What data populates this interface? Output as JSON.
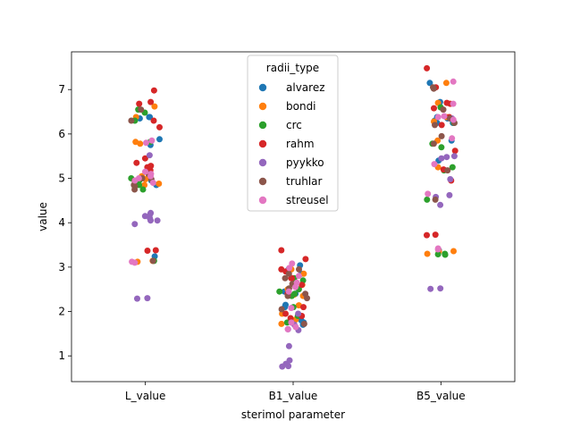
{
  "chart_data": {
    "type": "scatter",
    "title": "",
    "xlabel": "sterimol parameter",
    "ylabel": "value",
    "categories": [
      "L_value",
      "B1_value",
      "B5_value"
    ],
    "ylim": [
      0.42,
      7.85
    ],
    "yticks": [
      1,
      2,
      3,
      4,
      5,
      6,
      7
    ],
    "legend": {
      "title": "radii_type",
      "placement": "upper center"
    },
    "series": [
      {
        "name": "alvarez",
        "color": "#1f77b4",
        "values": [
          [
            6.38,
            6.35,
            6.38,
            5.88,
            5.75,
            5.0,
            4.9,
            4.85,
            4.95,
            3.24
          ],
          [
            3.04,
            2.95,
            2.85,
            2.45,
            2.4,
            2.15,
            2.1,
            1.8,
            1.75,
            1.7
          ],
          [
            7.15,
            6.72,
            6.35,
            6.25,
            6.3,
            6.38,
            6.25,
            5.85,
            5.4,
            3.38
          ]
        ]
      },
      {
        "name": "bondi",
        "color": "#ff7f0e",
        "values": [
          [
            6.62,
            6.38,
            5.82,
            5.78,
            5.05,
            4.98,
            4.88,
            4.85,
            3.14,
            3.12
          ],
          [
            2.95,
            2.85,
            2.6,
            2.5,
            2.38,
            2.35,
            2.14,
            1.95,
            1.82,
            1.72
          ],
          [
            7.15,
            6.7,
            6.38,
            6.28,
            5.85,
            5.25,
            3.38,
            3.36,
            3.35,
            3.3
          ]
        ]
      },
      {
        "name": "crc",
        "color": "#2ca02c",
        "values": [
          [
            6.55,
            6.3,
            5.82,
            5.0,
            4.95,
            4.85,
            4.75,
            4.9,
            3.14,
            6.48
          ],
          [
            2.75,
            2.7,
            2.65,
            2.5,
            2.45,
            2.4,
            2.35,
            2.1,
            1.9,
            1.75
          ],
          [
            6.6,
            6.25,
            5.78,
            5.7,
            5.25,
            5.18,
            4.52,
            3.3,
            3.28,
            3.29
          ]
        ]
      },
      {
        "name": "rahm",
        "color": "#d62728",
        "values": [
          [
            6.98,
            6.72,
            6.68,
            6.3,
            6.15,
            5.45,
            5.35,
            5.25,
            5.18,
            3.38,
            3.37,
            5.28
          ],
          [
            3.38,
            3.18,
            2.95,
            2.9,
            2.75,
            2.6,
            2.4,
            2.1,
            1.95,
            1.9,
            1.85,
            2.75
          ],
          [
            7.48,
            7.05,
            6.7,
            6.68,
            6.38,
            5.62,
            5.2,
            4.95,
            3.73,
            3.72,
            6.58,
            6.2
          ]
        ]
      },
      {
        "name": "pyykko",
        "color": "#9467bd",
        "values": [
          [
            5.52,
            4.22,
            4.2,
            4.15,
            4.1,
            4.05,
            4.05,
            3.97,
            2.3,
            2.29
          ],
          [
            1.95,
            1.75,
            1.6,
            1.58,
            1.22,
            0.9,
            0.82,
            0.77,
            0.76,
            1.7
          ],
          [
            5.5,
            5.48,
            5.45,
            4.98,
            4.62,
            4.58,
            4.4,
            2.52,
            2.51,
            6.35
          ]
        ]
      },
      {
        "name": "truhlar",
        "color": "#8c564b",
        "values": [
          [
            6.55,
            6.3,
            5.1,
            5.0,
            4.85,
            4.82,
            4.75,
            4.95,
            3.14,
            4.98
          ],
          [
            2.95,
            2.85,
            2.75,
            2.62,
            2.4,
            2.35,
            2.05,
            1.72,
            2.52,
            2.3
          ],
          [
            7.05,
            7.02,
            6.55,
            6.25,
            5.78,
            5.18,
            4.52,
            6.35,
            6.2,
            5.95
          ]
        ]
      },
      {
        "name": "streusel",
        "color": "#e377c2",
        "values": [
          [
            5.85,
            5.8,
            5.1,
            5.05,
            5.0,
            4.95,
            4.9,
            3.12,
            3.1,
            5.15
          ],
          [
            3.08,
            2.98,
            2.8,
            2.65,
            2.55,
            2.45,
            2.08,
            1.75,
            1.65,
            1.6
          ],
          [
            7.18,
            6.68,
            6.4,
            6.38,
            5.9,
            5.32,
            4.65,
            3.42,
            3.4,
            6.32
          ]
        ]
      }
    ]
  }
}
